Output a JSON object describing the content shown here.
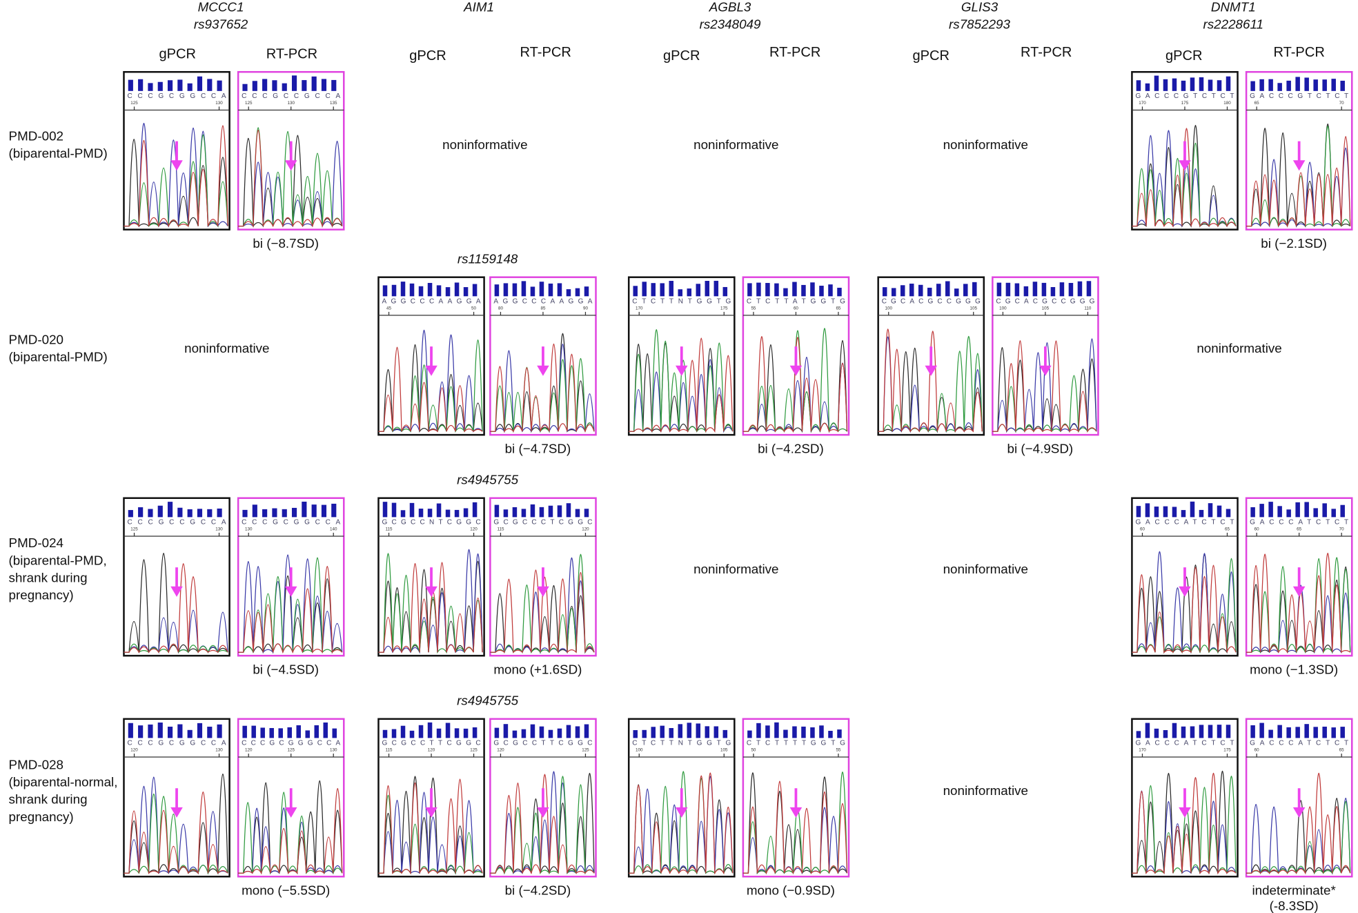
{
  "columns": [
    {
      "gene": "MCCC1",
      "snp": "rs937652",
      "gpcr": "gPCR",
      "rtpcr": "RT-PCR"
    },
    {
      "gene": "AIM1",
      "gpcr": "gPCR",
      "rtpcr": "RT-PCR"
    },
    {
      "gene": "AGBL3",
      "snp": "rs2348049",
      "gpcr": "gPCR",
      "rtpcr": "RT-PCR"
    },
    {
      "gene": "GLIS3",
      "snp": "rs7852293",
      "gpcr": "gPCR",
      "rtpcr": "RT-PCR"
    },
    {
      "gene": "DNMT1",
      "snp": "rs2228611",
      "gpcr": "gPCR",
      "rtpcr": "RT-PCR"
    }
  ],
  "rows": [
    {
      "sample": "PMD-002",
      "description": [
        "(biparental-PMD)"
      ],
      "cells": [
        {
          "gpcr": {
            "sequence": "CCCGCGGCCA",
            "positions": [
              "125",
              "130"
            ]
          },
          "rtpcr": {
            "sequence": "CCCGCCGCCA",
            "positions": [
              "125",
              "130",
              "135"
            ]
          },
          "result": [
            "bi (−8.7SD)"
          ]
        },
        {
          "status": "noninformative"
        },
        {
          "status": "noninformative"
        },
        {
          "status": "noninformative"
        },
        {
          "gpcr": {
            "sequence": "GACCCGTCTCT",
            "positions": [
              "170",
              "175",
              "180"
            ]
          },
          "rtpcr": {
            "sequence": "GACCCGTCTCT",
            "positions": [
              "65",
              "70"
            ]
          },
          "result": [
            "bi (−2.1SD)"
          ]
        }
      ]
    },
    {
      "sample": "PMD-020",
      "description": [
        "(biparental-PMD)"
      ],
      "cells": [
        {
          "status": "noninformative"
        },
        {
          "snp": "rs1159148",
          "gpcr": {
            "sequence": "AGGCCCAAGGA",
            "positions": [
              "45",
              "50"
            ]
          },
          "rtpcr": {
            "sequence": "AGGCCCAAGGA",
            "positions": [
              "80",
              "85",
              "90"
            ]
          },
          "result": [
            "bi (−4.7SD)"
          ]
        },
        {
          "gpcr": {
            "sequence": "CTCTTNTGGTG",
            "positions": [
              "170",
              "175"
            ]
          },
          "rtpcr": {
            "sequence": "CTCTTATGGTG",
            "positions": [
              "55",
              "60",
              "65"
            ]
          },
          "result": [
            "bi (−4.2SD)"
          ]
        },
        {
          "gpcr": {
            "sequence": "CGCACGCCGGG",
            "positions": [
              "100",
              "105"
            ]
          },
          "rtpcr": {
            "sequence": "CGCACGCCGGG",
            "positions": [
              "100",
              "105",
              "110"
            ]
          },
          "result": [
            "bi (−4.9SD)"
          ]
        },
        {
          "status": "noninformative"
        }
      ]
    },
    {
      "sample": "PMD-024",
      "description": [
        "(biparental-PMD,",
        "shrank during",
        "pregnancy)"
      ],
      "cells": [
        {
          "gpcr": {
            "sequence": "CCCGCCGCCA",
            "positions": [
              "125",
              "130"
            ]
          },
          "rtpcr": {
            "sequence": "CCCGCGGCCA",
            "positions": [
              "130",
              "140"
            ]
          },
          "result": [
            "bi (−4.5SD)"
          ]
        },
        {
          "snp": "rs4945755",
          "gpcr": {
            "sequence": "GCGCCNTCGGC",
            "positions": [
              "115",
              "120"
            ]
          },
          "rtpcr": {
            "sequence": "GCGCCCTCGGC",
            "positions": [
              "115",
              "120"
            ]
          },
          "result": [
            "mono (+1.6SD)"
          ]
        },
        {
          "status": "noninformative"
        },
        {
          "status": "noninformative"
        },
        {
          "gpcr": {
            "sequence": "GACCCATCTCT",
            "positions": [
              "60",
              "65"
            ]
          },
          "rtpcr": {
            "sequence": "GACCCATCTCT",
            "positions": [
              "60",
              "65",
              "70"
            ]
          },
          "result": [
            "mono (−1.3SD)"
          ]
        }
      ]
    },
    {
      "sample": "PMD-028",
      "description": [
        "(biparental-normal,",
        "shrank during",
        "pregnancy)"
      ],
      "cells": [
        {
          "gpcr": {
            "sequence": "CCCGCGGCCA",
            "positions": [
              "120",
              "130"
            ]
          },
          "rtpcr": {
            "sequence": "CCCGCGGGCCA",
            "positions": [
              "120",
              "125",
              "130"
            ]
          },
          "result": [
            "mono (−5.5SD)"
          ]
        },
        {
          "snp": "rs4945755",
          "gpcr": {
            "sequence": "GCGCCTTCGGC",
            "positions": [
              "115",
              "120",
              "125"
            ]
          },
          "rtpcr": {
            "sequence": "GCGCCTTCGGC",
            "positions": [
              "120",
              "125"
            ]
          },
          "result": [
            "bi (−4.2SD)"
          ]
        },
        {
          "gpcr": {
            "sequence": "CTCTTNTGGTG",
            "positions": [
              "100",
              "105"
            ]
          },
          "rtpcr": {
            "sequence": "CTCTTTTGGTG",
            "positions": [
              "50",
              "55"
            ]
          },
          "result": [
            "mono (−0.9SD)"
          ]
        },
        {
          "status": "noninformative"
        },
        {
          "gpcr": {
            "sequence": "GACCCATCTCT",
            "positions": [
              "170",
              "175"
            ]
          },
          "rtpcr": {
            "sequence": "GACCCATCTCT",
            "positions": [
              "60",
              "65"
            ]
          },
          "result": [
            "indeterminate*",
            "(-8.3SD)"
          ]
        }
      ]
    }
  ]
}
